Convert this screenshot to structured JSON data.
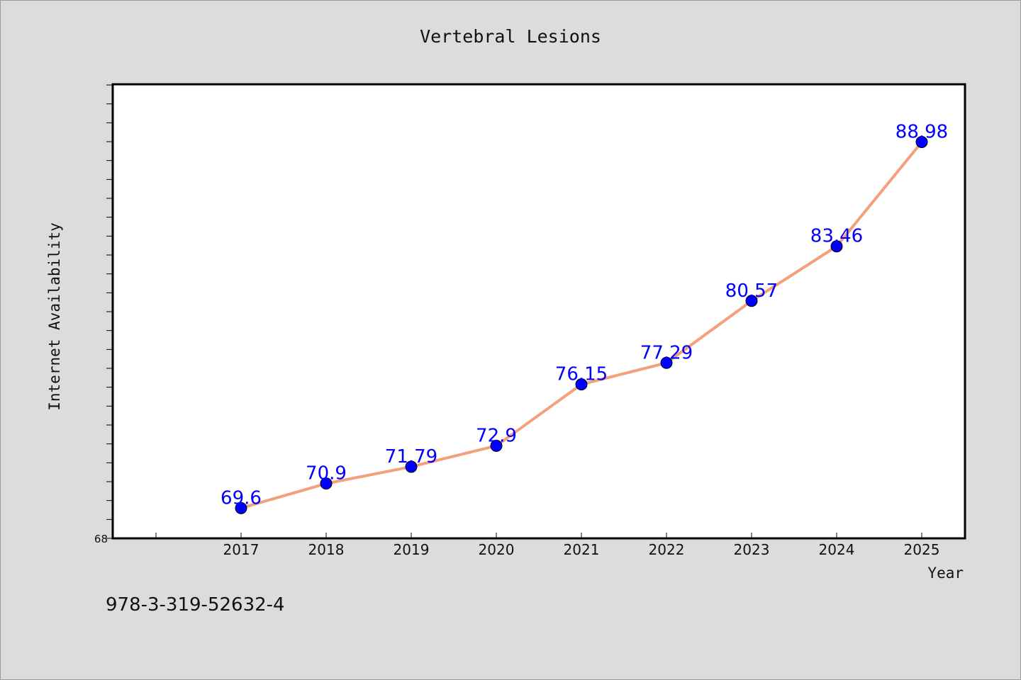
{
  "chart_data": {
    "type": "line",
    "title": "Vertebral Lesions",
    "xlabel": "Year",
    "ylabel": "Internet Availability",
    "categories": [
      "2017",
      "2018",
      "2019",
      "2020",
      "2021",
      "2022",
      "2023",
      "2024",
      "2025"
    ],
    "series": [
      {
        "values": [
          69.6,
          70.9,
          71.79,
          72.9,
          76.15,
          77.29,
          80.57,
          83.46,
          88.98
        ],
        "labels": [
          "69.6",
          "70.9",
          "71.79",
          "72.9",
          "76.15",
          "77.29",
          "80.57",
          "83.46",
          "88.98"
        ],
        "line_color": "#f4a07a",
        "marker_color": "#0000ff"
      }
    ],
    "ylim": [
      68,
      92
    ],
    "y_tick_labels": [
      "68"
    ],
    "grid": false,
    "legend": "none"
  },
  "footer": {
    "isbn": "978-3-319-52632-4"
  }
}
